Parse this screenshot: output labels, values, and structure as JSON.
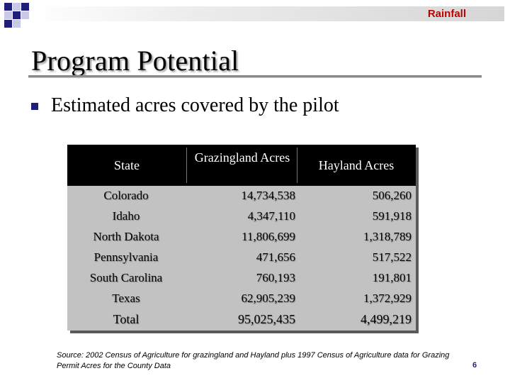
{
  "header": {
    "label": "Rainfall"
  },
  "title": "Program Potential",
  "bullet": "Estimated acres covered by the pilot",
  "table": {
    "columns": [
      "State",
      "Grazingland Acres",
      "Hayland Acres"
    ],
    "rows": [
      {
        "state": "Colorado",
        "grazingland": "14,734,538",
        "hayland": "506,260"
      },
      {
        "state": "Idaho",
        "grazingland": "4,347,110",
        "hayland": "591,918"
      },
      {
        "state": "North Dakota",
        "grazingland": "11,806,699",
        "hayland": "1,318,789"
      },
      {
        "state": "Pennsylvania",
        "grazingland": "471,656",
        "hayland": "517,522"
      },
      {
        "state": "South Carolina",
        "grazingland": "760,193",
        "hayland": "191,801"
      },
      {
        "state": "Texas",
        "grazingland": "62,905,239",
        "hayland": "1,372,929"
      }
    ],
    "total": {
      "state": "Total",
      "grazingland": "95,025,435",
      "hayland": "4,499,219"
    }
  },
  "source": "Source: 2002 Census of Agriculture for grazingland and Hayland plus 1997 Census of Agriculture data for Grazing Permit Acres for the County Data",
  "page_number": "6",
  "colors": {
    "accent_red": "#c00000",
    "navy": "#1f1f7a",
    "table_header": "#000000",
    "table_body": "#c2c2c2"
  }
}
